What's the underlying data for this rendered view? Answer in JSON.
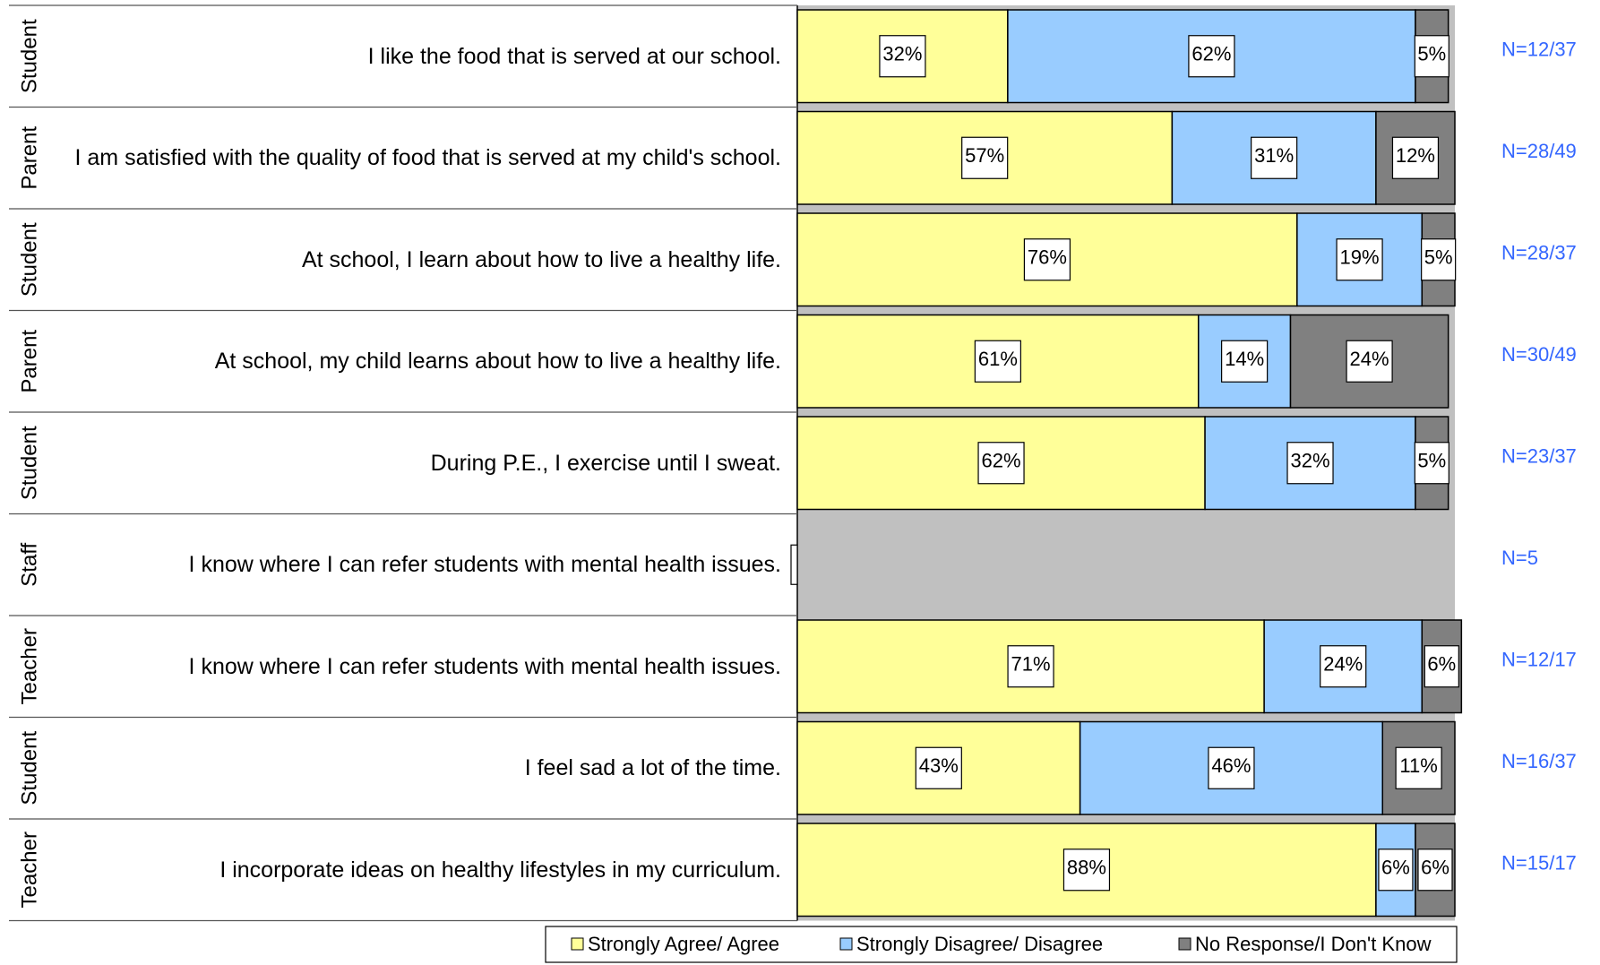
{
  "chart_data": {
    "type": "bar",
    "orientation": "horizontal",
    "stacked": true,
    "xlim": [
      0,
      100
    ],
    "groups": [
      "Student",
      "Parent",
      "Student",
      "Parent",
      "Student",
      "Staff",
      "Teacher",
      "Student",
      "Teacher"
    ],
    "categories": [
      "I like the food that is served at our school.",
      "I am satisfied with the quality of food that is served at my child's school.",
      "At school, I learn about how to live a healthy life.",
      "At school, my child learns about how to live a healthy life.",
      "During P.E., I exercise until I sweat.",
      "I know where I can refer students with mental health issues.",
      "I know where I can refer students with mental health issues.",
      "I feel sad a lot of the time.",
      "I incorporate ideas on healthy lifestyles in my curriculum."
    ],
    "annotations": [
      "N=12/37",
      "N=28/49",
      "N=28/37",
      "N=30/49",
      "N=23/37",
      "N=5",
      "N=12/17",
      "N=16/37",
      "N=15/17"
    ],
    "series": [
      {
        "name": "Strongly Agree/ Agree",
        "color": "#ffff99",
        "values": [
          32,
          57,
          76,
          61,
          62,
          null,
          71,
          43,
          88
        ],
        "value_labels": [
          "32%",
          "57%",
          "76%",
          "61%",
          "62%",
          null,
          "71%",
          "43%",
          "88%"
        ]
      },
      {
        "name": "Strongly Disagree/ Disagree",
        "color": "#99ccff",
        "values": [
          62,
          31,
          19,
          14,
          32,
          null,
          24,
          46,
          6
        ],
        "value_labels": [
          "62%",
          "31%",
          "19%",
          "14%",
          "32%",
          null,
          "24%",
          "46%",
          "6%"
        ]
      },
      {
        "name": "No Response/I Don't Know",
        "color": "#808080",
        "values": [
          5,
          12,
          5,
          24,
          5,
          null,
          6,
          11,
          6
        ],
        "value_labels": [
          "5%",
          "12%",
          "5%",
          "24%",
          "5%",
          null,
          "6%",
          "11%",
          "6%"
        ]
      }
    ],
    "background_color": "#c0c0c0",
    "annotation_color": "#3366ff"
  }
}
